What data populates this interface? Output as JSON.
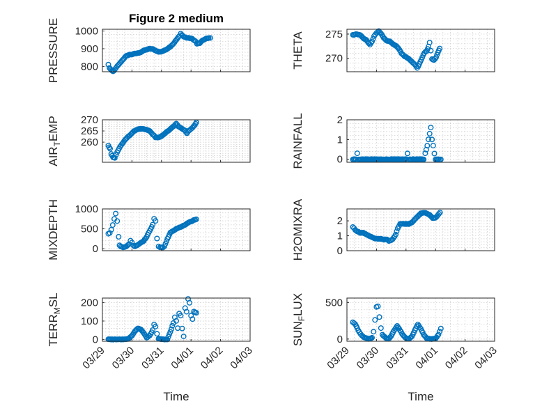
{
  "figure": {
    "title": "Figure 2 medium",
    "marker_color": "#0072bd"
  },
  "chart_data": [
    {
      "type": "scatter",
      "title": "Figure 2 medium",
      "ylabel": "PRESSURE",
      "ylim": [
        770,
        1010
      ],
      "yticks": [
        800,
        900,
        1000
      ],
      "xlim": [
        0,
        5
      ],
      "xtick_labels": [],
      "xlabel": "",
      "grid": true,
      "keypoints": [
        [
          0.2,
          810
        ],
        [
          0.24,
          792
        ],
        [
          0.3,
          778
        ],
        [
          0.36,
          772
        ],
        [
          0.42,
          782
        ],
        [
          0.5,
          800
        ],
        [
          0.6,
          820
        ],
        [
          0.7,
          840
        ],
        [
          0.8,
          858
        ],
        [
          0.9,
          866
        ],
        [
          1.0,
          868
        ],
        [
          1.1,
          872
        ],
        [
          1.2,
          875
        ],
        [
          1.3,
          880
        ],
        [
          1.4,
          890
        ],
        [
          1.5,
          895
        ],
        [
          1.6,
          900
        ],
        [
          1.7,
          898
        ],
        [
          1.8,
          890
        ],
        [
          1.9,
          882
        ],
        [
          2.0,
          884
        ],
        [
          2.1,
          890
        ],
        [
          2.2,
          900
        ],
        [
          2.3,
          912
        ],
        [
          2.4,
          928
        ],
        [
          2.5,
          950
        ],
        [
          2.6,
          970
        ],
        [
          2.65,
          985
        ],
        [
          2.75,
          968
        ],
        [
          2.85,
          962
        ],
        [
          2.95,
          960
        ],
        [
          3.05,
          955
        ],
        [
          3.15,
          942
        ],
        [
          3.2,
          928
        ],
        [
          3.3,
          932
        ],
        [
          3.4,
          948
        ],
        [
          3.5,
          956
        ],
        [
          3.6,
          960
        ],
        [
          3.65,
          962
        ]
      ]
    },
    {
      "type": "scatter",
      "title": "",
      "ylabel": "THETA",
      "ylim": [
        267.2,
        276
      ],
      "yticks": [
        270,
        275
      ],
      "xlim": [
        0,
        5
      ],
      "xtick_labels": [],
      "xlabel": "",
      "grid": true,
      "keypoints": [
        [
          0.2,
          274.8
        ],
        [
          0.3,
          275.0
        ],
        [
          0.45,
          274.8
        ],
        [
          0.55,
          274.2
        ],
        [
          0.65,
          273.8
        ],
        [
          0.72,
          273.2
        ],
        [
          0.78,
          272.8
        ],
        [
          0.85,
          273.5
        ],
        [
          0.92,
          274.6
        ],
        [
          1.0,
          275.2
        ],
        [
          1.08,
          275.6
        ],
        [
          1.15,
          275.1
        ],
        [
          1.25,
          274.2
        ],
        [
          1.35,
          273.6
        ],
        [
          1.45,
          273.5
        ],
        [
          1.55,
          273.0
        ],
        [
          1.65,
          272.6
        ],
        [
          1.75,
          272.0
        ],
        [
          1.85,
          271.0
        ],
        [
          1.95,
          270.4
        ],
        [
          2.05,
          270.1
        ],
        [
          2.15,
          269.6
        ],
        [
          2.25,
          269.0
        ],
        [
          2.32,
          268.5
        ],
        [
          2.38,
          268.0
        ],
        [
          2.42,
          268.4
        ],
        [
          2.48,
          269.2
        ],
        [
          2.55,
          270.2
        ],
        [
          2.62,
          271.1
        ],
        [
          2.7,
          271.5
        ],
        [
          2.76,
          272.4
        ],
        [
          2.8,
          273.2
        ],
        [
          2.84,
          271.6
        ],
        [
          2.88,
          269.8
        ],
        [
          2.95,
          269.6
        ],
        [
          3.02,
          270.2
        ],
        [
          3.08,
          271.2
        ],
        [
          3.14,
          272.0
        ]
      ]
    },
    {
      "type": "scatter",
      "title": "",
      "ylabel": "AIR_TEMP",
      "ylim": [
        251,
        270
      ],
      "yticks": [
        260,
        265,
        270
      ],
      "xlim": [
        0,
        5
      ],
      "xtick_labels": [],
      "xlabel": "",
      "grid": true,
      "keypoints": [
        [
          0.2,
          258.5
        ],
        [
          0.26,
          257.0
        ],
        [
          0.3,
          254.8
        ],
        [
          0.36,
          253.2
        ],
        [
          0.42,
          253.0
        ],
        [
          0.5,
          255.5
        ],
        [
          0.6,
          258.0
        ],
        [
          0.7,
          259.8
        ],
        [
          0.8,
          261.5
        ],
        [
          0.9,
          262.8
        ],
        [
          1.0,
          264.0
        ],
        [
          1.1,
          265.2
        ],
        [
          1.2,
          265.8
        ],
        [
          1.3,
          265.9
        ],
        [
          1.4,
          265.8
        ],
        [
          1.5,
          265.5
        ],
        [
          1.6,
          265.0
        ],
        [
          1.7,
          263.5
        ],
        [
          1.8,
          262.2
        ],
        [
          1.9,
          262.0
        ],
        [
          2.0,
          262.6
        ],
        [
          2.1,
          263.8
        ],
        [
          2.2,
          264.8
        ],
        [
          2.3,
          265.8
        ],
        [
          2.4,
          267.0
        ],
        [
          2.5,
          268.2
        ],
        [
          2.58,
          267.0
        ],
        [
          2.65,
          266.5
        ],
        [
          2.72,
          265.8
        ],
        [
          2.8,
          265.2
        ],
        [
          2.86,
          264.0
        ],
        [
          2.92,
          265.0
        ],
        [
          3.0,
          266.0
        ],
        [
          3.05,
          266.5
        ],
        [
          3.12,
          267.5
        ],
        [
          3.18,
          268.8
        ]
      ]
    },
    {
      "type": "scatter",
      "title": "",
      "ylabel": "RAINFALL",
      "ylim": [
        -0.15,
        2.0
      ],
      "yticks": [
        0,
        1,
        2
      ],
      "xlim": [
        0,
        5
      ],
      "xtick_labels": [],
      "xlabel": "",
      "grid": true,
      "keypoints": [
        [
          0.2,
          0
        ],
        [
          0.3,
          0
        ],
        [
          0.35,
          0.3
        ],
        [
          0.4,
          0
        ],
        [
          0.6,
          0
        ],
        [
          0.9,
          0
        ],
        [
          1.2,
          0
        ],
        [
          1.5,
          0
        ],
        [
          1.8,
          0
        ],
        [
          2.0,
          0
        ],
        [
          2.05,
          0.3
        ],
        [
          2.1,
          0
        ],
        [
          2.4,
          0
        ],
        [
          2.6,
          0
        ],
        [
          2.65,
          0.3
        ],
        [
          2.72,
          0.7
        ],
        [
          2.76,
          1.0
        ],
        [
          2.8,
          1.3
        ],
        [
          2.84,
          1.6
        ],
        [
          2.88,
          1.0
        ],
        [
          2.92,
          0.7
        ],
        [
          2.96,
          0.3
        ],
        [
          3.0,
          0
        ],
        [
          3.1,
          0
        ],
        [
          3.18,
          0
        ]
      ]
    },
    {
      "type": "scatter",
      "title": "",
      "ylabel": "MIXDEPTH",
      "ylim": [
        -50,
        1000
      ],
      "yticks": [
        0,
        500,
        1000
      ],
      "xlim": [
        0,
        5
      ],
      "xtick_labels": [],
      "xlabel": "",
      "grid": true,
      "keypoints": [
        [
          0.2,
          380
        ],
        [
          0.25,
          400
        ],
        [
          0.3,
          480
        ],
        [
          0.35,
          600
        ],
        [
          0.4,
          750
        ],
        [
          0.45,
          880
        ],
        [
          0.5,
          700
        ],
        [
          0.55,
          300
        ],
        [
          0.58,
          80
        ],
        [
          0.62,
          60
        ],
        [
          0.7,
          30
        ],
        [
          0.8,
          60
        ],
        [
          0.9,
          110
        ],
        [
          0.95,
          200
        ],
        [
          1.0,
          160
        ],
        [
          1.05,
          80
        ],
        [
          1.1,
          60
        ],
        [
          1.2,
          100
        ],
        [
          1.3,
          150
        ],
        [
          1.4,
          200
        ],
        [
          1.5,
          300
        ],
        [
          1.6,
          450
        ],
        [
          1.7,
          600
        ],
        [
          1.75,
          750
        ],
        [
          1.8,
          700
        ],
        [
          1.85,
          250
        ],
        [
          1.9,
          60
        ],
        [
          1.95,
          40
        ],
        [
          2.05,
          30
        ],
        [
          2.1,
          60
        ],
        [
          2.2,
          250
        ],
        [
          2.3,
          400
        ],
        [
          2.4,
          450
        ],
        [
          2.5,
          500
        ],
        [
          2.6,
          530
        ],
        [
          2.7,
          560
        ],
        [
          2.8,
          600
        ],
        [
          2.9,
          650
        ],
        [
          3.0,
          680
        ],
        [
          3.1,
          720
        ],
        [
          3.18,
          740
        ]
      ]
    },
    {
      "type": "scatter",
      "title": "",
      "ylabel": "H2OMIXRA",
      "ylim": [
        0,
        2.8
      ],
      "yticks": [
        0,
        1,
        2
      ],
      "xlim": [
        0,
        5
      ],
      "xtick_labels": [],
      "xlabel": "",
      "grid": true,
      "keypoints": [
        [
          0.2,
          1.6
        ],
        [
          0.28,
          1.4
        ],
        [
          0.35,
          1.3
        ],
        [
          0.45,
          1.2
        ],
        [
          0.55,
          1.2
        ],
        [
          0.65,
          1.1
        ],
        [
          0.75,
          1.0
        ],
        [
          0.85,
          0.9
        ],
        [
          0.95,
          0.8
        ],
        [
          1.05,
          0.8
        ],
        [
          1.15,
          0.8
        ],
        [
          1.25,
          0.75
        ],
        [
          1.35,
          0.75
        ],
        [
          1.42,
          0.65
        ],
        [
          1.5,
          0.7
        ],
        [
          1.58,
          0.85
        ],
        [
          1.65,
          1.1
        ],
        [
          1.72,
          1.5
        ],
        [
          1.8,
          1.8
        ],
        [
          1.9,
          1.8
        ],
        [
          2.0,
          1.8
        ],
        [
          2.1,
          1.8
        ],
        [
          2.2,
          1.9
        ],
        [
          2.3,
          2.1
        ],
        [
          2.4,
          2.3
        ],
        [
          2.5,
          2.5
        ],
        [
          2.6,
          2.55
        ],
        [
          2.7,
          2.5
        ],
        [
          2.8,
          2.4
        ],
        [
          2.9,
          2.2
        ],
        [
          3.0,
          2.2
        ],
        [
          3.08,
          2.4
        ],
        [
          3.15,
          2.55
        ]
      ]
    },
    {
      "type": "scatter",
      "title": "",
      "ylabel": "TERR_MSL",
      "ylim": [
        -10,
        225
      ],
      "yticks": [
        0,
        100,
        200
      ],
      "xlim": [
        0,
        5
      ],
      "xtick_labels": [
        "03/29",
        "03/30",
        "03/31",
        "04/01",
        "04/02",
        "04/03"
      ],
      "xlabel": "Time",
      "grid": true,
      "keypoints": [
        [
          0.2,
          0
        ],
        [
          0.4,
          0
        ],
        [
          0.6,
          0
        ],
        [
          0.8,
          0
        ],
        [
          0.9,
          5
        ],
        [
          1.0,
          20
        ],
        [
          1.1,
          45
        ],
        [
          1.2,
          60
        ],
        [
          1.3,
          55
        ],
        [
          1.4,
          35
        ],
        [
          1.5,
          10
        ],
        [
          1.6,
          20
        ],
        [
          1.7,
          50
        ],
        [
          1.75,
          80
        ],
        [
          1.8,
          70
        ],
        [
          1.85,
          30
        ],
        [
          1.9,
          5
        ],
        [
          2.0,
          0
        ],
        [
          2.2,
          0
        ],
        [
          2.3,
          40
        ],
        [
          2.4,
          90
        ],
        [
          2.45,
          120
        ],
        [
          2.5,
          100
        ],
        [
          2.55,
          60
        ],
        [
          2.6,
          140
        ],
        [
          2.65,
          130
        ],
        [
          2.7,
          60
        ],
        [
          2.75,
          15
        ],
        [
          2.8,
          170
        ],
        [
          2.85,
          150
        ],
        [
          2.9,
          220
        ],
        [
          2.95,
          200
        ],
        [
          3.0,
          130
        ],
        [
          3.05,
          110
        ],
        [
          3.1,
          150
        ],
        [
          3.18,
          145
        ]
      ]
    },
    {
      "type": "scatter",
      "title": "",
      "ylabel": "SUN_FLUX",
      "ylim": [
        -30,
        560
      ],
      "yticks": [
        0,
        500
      ],
      "xlim": [
        0,
        5
      ],
      "xtick_labels": [
        "03/29",
        "03/30",
        "03/31",
        "04/01",
        "04/02",
        "04/03"
      ],
      "xlabel": "Time",
      "grid": true,
      "keypoints": [
        [
          0.2,
          230
        ],
        [
          0.28,
          200
        ],
        [
          0.35,
          150
        ],
        [
          0.42,
          90
        ],
        [
          0.5,
          50
        ],
        [
          0.58,
          25
        ],
        [
          0.65,
          10
        ],
        [
          0.75,
          0
        ],
        [
          0.85,
          20
        ],
        [
          0.9,
          100
        ],
        [
          0.95,
          260
        ],
        [
          1.0,
          440
        ],
        [
          1.05,
          450
        ],
        [
          1.1,
          300
        ],
        [
          1.15,
          150
        ],
        [
          1.2,
          60
        ],
        [
          1.3,
          20
        ],
        [
          1.4,
          0
        ],
        [
          1.5,
          40
        ],
        [
          1.6,
          120
        ],
        [
          1.7,
          180
        ],
        [
          1.8,
          120
        ],
        [
          1.9,
          50
        ],
        [
          2.0,
          10
        ],
        [
          2.1,
          0
        ],
        [
          2.2,
          40
        ],
        [
          2.3,
          120
        ],
        [
          2.4,
          200
        ],
        [
          2.5,
          140
        ],
        [
          2.6,
          60
        ],
        [
          2.7,
          10
        ],
        [
          2.8,
          0
        ],
        [
          2.9,
          0
        ],
        [
          3.0,
          5
        ],
        [
          3.1,
          60
        ],
        [
          3.18,
          140
        ]
      ]
    }
  ]
}
